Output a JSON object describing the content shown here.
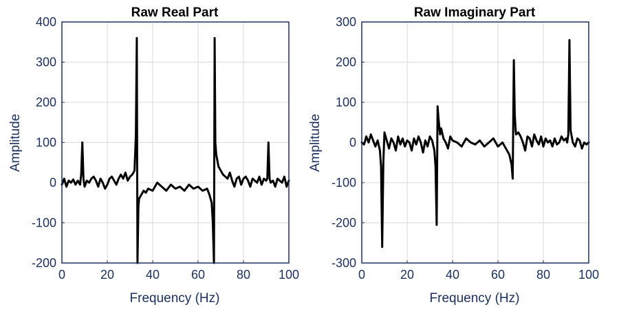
{
  "chart_data": [
    {
      "type": "line",
      "title": "Raw Real Part",
      "xlabel": "Frequency (Hz)",
      "ylabel": "Amplitude",
      "xlim": [
        0,
        100
      ],
      "ylim": [
        -200,
        400
      ],
      "xticks": [
        0,
        20,
        40,
        60,
        80,
        100
      ],
      "yticks": [
        -200,
        -100,
        0,
        100,
        200,
        300,
        400
      ],
      "grid": true,
      "color": "#000000",
      "series": [
        {
          "x": [
            0,
            1,
            2,
            3,
            4,
            5,
            6,
            7,
            8,
            8.5,
            9,
            9.5,
            10,
            11,
            12,
            13,
            14,
            15,
            16,
            17,
            18,
            19,
            20,
            21,
            22,
            23,
            24,
            25,
            26,
            27,
            28,
            29,
            30,
            31,
            32,
            32.6,
            33,
            33.3,
            33.7,
            34,
            35,
            36,
            37,
            38,
            40,
            42,
            44,
            46,
            48,
            50,
            52,
            54,
            56,
            58,
            60,
            62,
            64,
            65,
            66,
            66.5,
            67,
            67.3,
            67.6,
            68,
            69,
            70,
            71,
            72,
            73,
            74,
            75,
            76,
            77,
            78,
            79,
            80,
            81,
            82,
            83,
            84,
            85,
            86,
            87,
            88,
            89,
            90,
            90.5,
            91,
            91.5,
            92,
            93,
            94,
            95,
            96,
            97,
            98,
            99,
            100
          ],
          "values": [
            -5,
            10,
            -10,
            5,
            0,
            8,
            -5,
            5,
            -5,
            20,
            100,
            10,
            -10,
            5,
            0,
            10,
            15,
            5,
            -10,
            10,
            0,
            -15,
            -5,
            10,
            15,
            5,
            -5,
            10,
            20,
            10,
            25,
            5,
            15,
            20,
            30,
            120,
            360,
            -200,
            -60,
            -40,
            -30,
            -20,
            -25,
            -15,
            -20,
            0,
            -10,
            -20,
            -5,
            -15,
            -10,
            -20,
            -5,
            -15,
            -10,
            -20,
            -15,
            -30,
            -50,
            -100,
            -200,
            360,
            100,
            70,
            40,
            30,
            20,
            15,
            10,
            25,
            5,
            -10,
            10,
            15,
            -5,
            10,
            15,
            5,
            -10,
            10,
            5,
            0,
            15,
            -5,
            10,
            5,
            10,
            100,
            10,
            0,
            5,
            -10,
            10,
            5,
            0,
            15,
            -10,
            5
          ],
          "note": ""
        }
      ]
    },
    {
      "type": "line",
      "title": "Raw Imaginary Part",
      "xlabel": "Frequency (Hz)",
      "ylabel": "Amplitude",
      "xlim": [
        0,
        100
      ],
      "ylim": [
        -300,
        300
      ],
      "xticks": [
        0,
        20,
        40,
        60,
        80,
        100
      ],
      "yticks": [
        -300,
        -200,
        -100,
        0,
        100,
        200,
        300
      ],
      "grid": true,
      "color": "#000000",
      "series": [
        {
          "x": [
            0,
            1,
            2,
            3,
            4,
            5,
            6,
            7,
            8,
            8.5,
            9,
            9.5,
            10,
            11,
            12,
            13,
            14,
            15,
            16,
            17,
            18,
            19,
            20,
            21,
            22,
            23,
            24,
            25,
            26,
            27,
            28,
            29,
            30,
            31,
            32,
            32.5,
            33,
            33.4,
            33.8,
            34.5,
            35,
            36,
            37,
            38,
            39,
            40,
            42,
            44,
            46,
            48,
            50,
            52,
            54,
            56,
            58,
            60,
            62,
            64,
            65,
            66,
            66.5,
            67,
            67.4,
            67.8,
            68,
            69,
            70,
            71,
            72,
            73,
            74,
            75,
            76,
            77,
            78,
            79,
            80,
            81,
            82,
            83,
            84,
            85,
            86,
            87,
            88,
            89,
            90,
            90.5,
            91,
            91.5,
            92,
            93,
            94,
            95,
            96,
            97,
            98,
            99,
            100
          ],
          "values": [
            0,
            -5,
            15,
            0,
            20,
            5,
            -10,
            5,
            -20,
            -60,
            -260,
            -50,
            25,
            5,
            -15,
            10,
            0,
            -20,
            15,
            -5,
            10,
            -10,
            5,
            0,
            -20,
            10,
            -5,
            15,
            0,
            -25,
            5,
            -10,
            15,
            5,
            -20,
            -60,
            -205,
            90,
            60,
            20,
            35,
            10,
            0,
            -15,
            15,
            5,
            0,
            -10,
            10,
            0,
            -5,
            5,
            -10,
            0,
            10,
            -10,
            0,
            -20,
            -30,
            -55,
            -90,
            205,
            70,
            30,
            20,
            25,
            15,
            0,
            -20,
            15,
            10,
            -10,
            20,
            5,
            -5,
            15,
            -10,
            10,
            0,
            5,
            -10,
            10,
            -5,
            0,
            15,
            5,
            10,
            0,
            20,
            255,
            30,
            0,
            -10,
            10,
            5,
            -15,
            0,
            -5,
            0
          ],
          "note": ""
        }
      ]
    }
  ]
}
